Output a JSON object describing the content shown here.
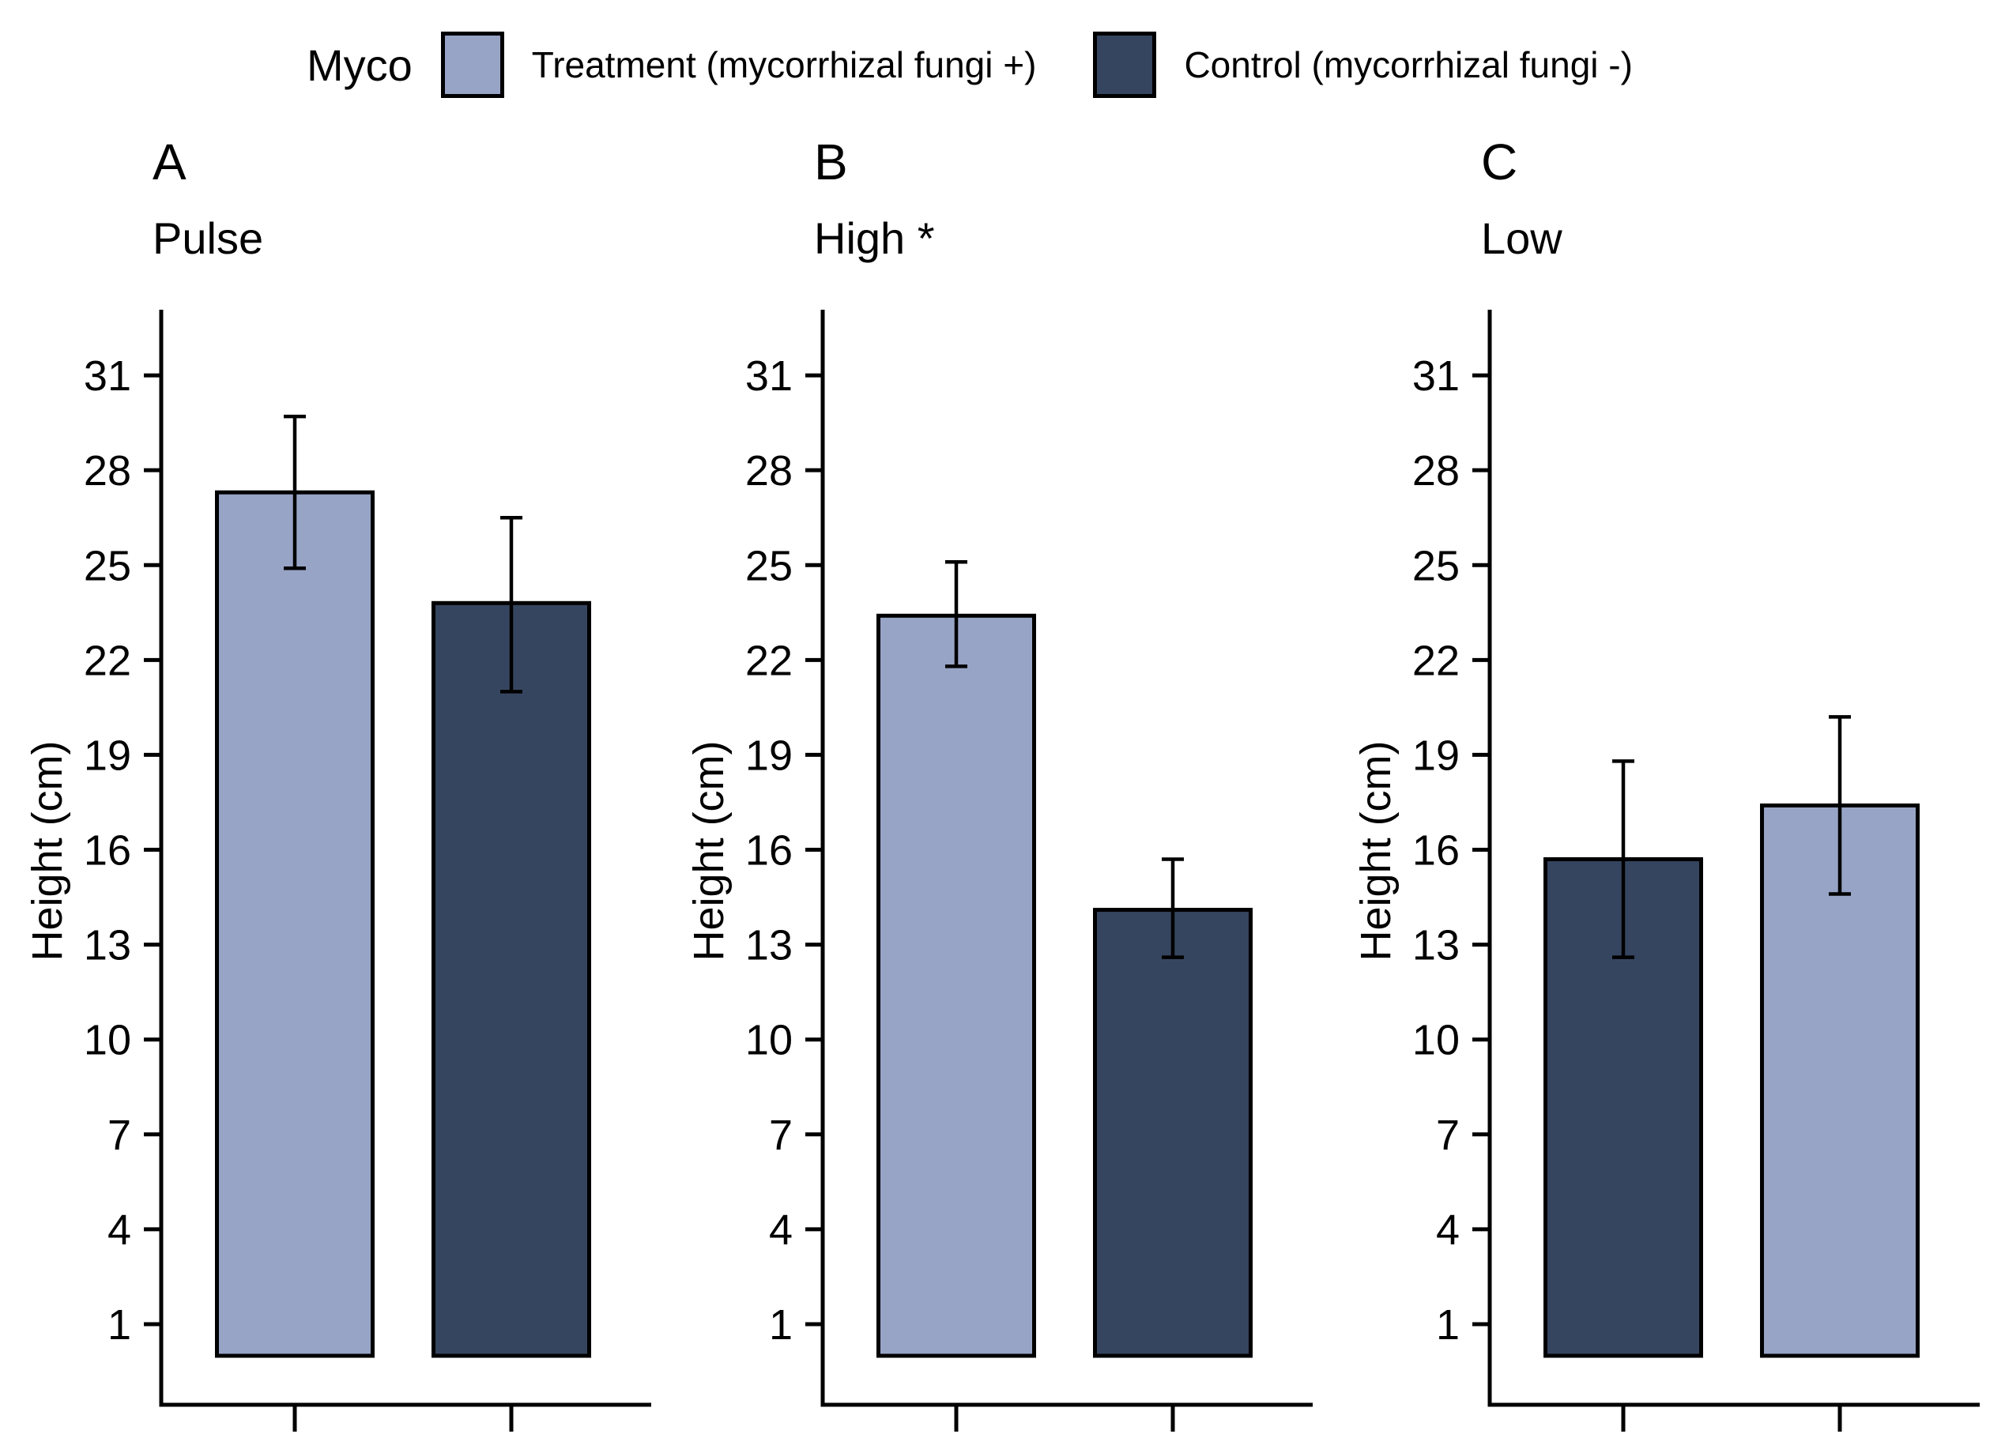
{
  "legend": {
    "title": "Myco",
    "items": [
      {
        "label": "Treatment (mycorrhizal fungi +)",
        "color": "#97A4C6"
      },
      {
        "label": "Control (mycorrhizal fungi -)",
        "color": "#36455F"
      }
    ]
  },
  "chart_data": [
    {
      "type": "bar",
      "panel_label": "A",
      "title": "Pulse",
      "ylabel": "Height (cm)",
      "yticks": [
        1,
        4,
        7,
        10,
        13,
        16,
        19,
        22,
        25,
        28,
        31
      ],
      "ylim": [
        0,
        33
      ],
      "legend_position": "top",
      "grid": false,
      "bars": [
        {
          "group": "Treatment (mycorrhizal fungi +)",
          "value": 27.3,
          "error_low": 24.9,
          "error_high": 29.7,
          "color": "#97A4C6"
        },
        {
          "group": "Control (mycorrhizal fungi -)",
          "value": 23.8,
          "error_low": 21.0,
          "error_high": 26.5,
          "color": "#36455F"
        }
      ]
    },
    {
      "type": "bar",
      "panel_label": "B",
      "title": "High *",
      "ylabel": "Height (cm)",
      "yticks": [
        1,
        4,
        7,
        10,
        13,
        16,
        19,
        22,
        25,
        28,
        31
      ],
      "ylim": [
        0,
        33
      ],
      "legend_position": "top",
      "grid": false,
      "bars": [
        {
          "group": "Treatment (mycorrhizal fungi +)",
          "value": 23.4,
          "error_low": 21.8,
          "error_high": 25.1,
          "color": "#97A4C6"
        },
        {
          "group": "Control (mycorrhizal fungi -)",
          "value": 14.1,
          "error_low": 12.6,
          "error_high": 15.7,
          "color": "#36455F"
        }
      ]
    },
    {
      "type": "bar",
      "panel_label": "C",
      "title": "Low",
      "ylabel": "Height (cm)",
      "yticks": [
        1,
        4,
        7,
        10,
        13,
        16,
        19,
        22,
        25,
        28,
        31
      ],
      "ylim": [
        0,
        33
      ],
      "legend_position": "top",
      "grid": false,
      "bars": [
        {
          "group": "Control (mycorrhizal fungi -)",
          "value": 15.7,
          "error_low": 12.6,
          "error_high": 18.8,
          "color": "#36455F"
        },
        {
          "group": "Treatment (mycorrhizal fungi +)",
          "value": 17.4,
          "error_low": 14.6,
          "error_high": 20.2,
          "color": "#97A4C6"
        }
      ]
    }
  ]
}
